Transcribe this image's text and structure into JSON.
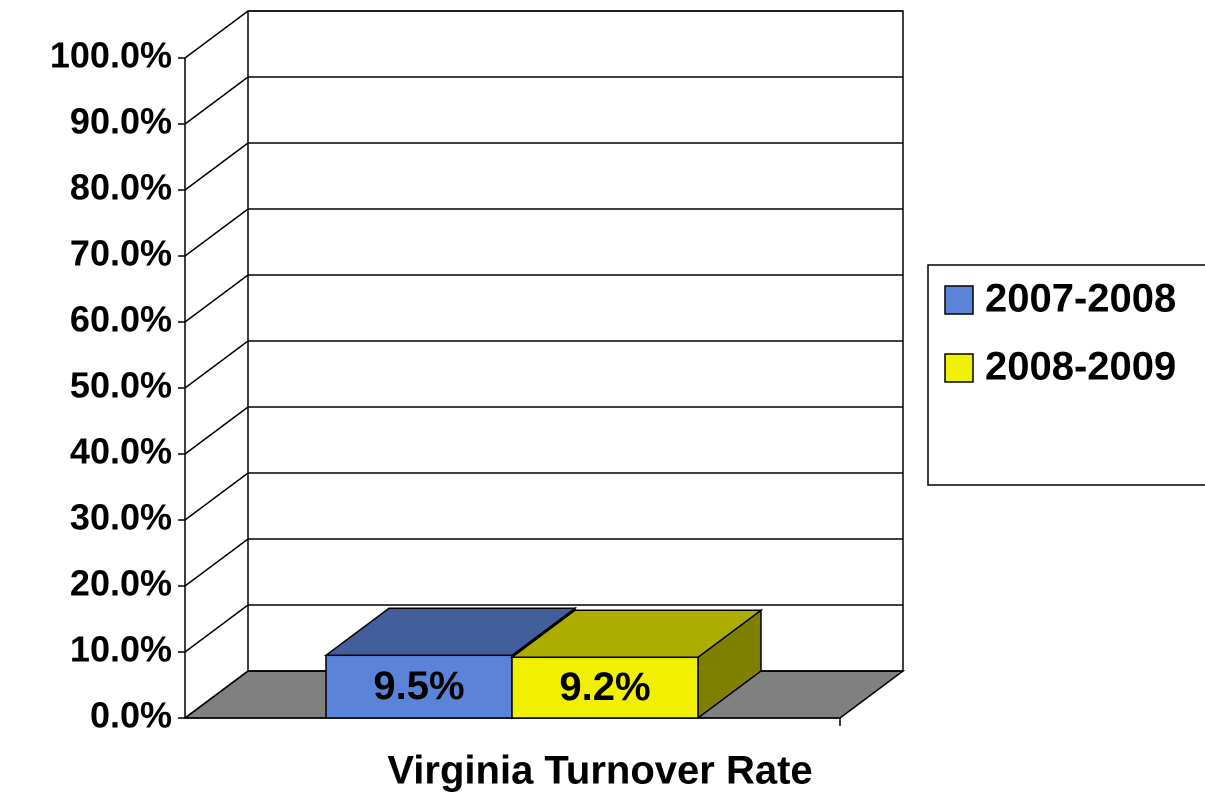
{
  "chart_data": {
    "type": "bar3d",
    "title": "Virginia Turnover Rate",
    "categories": [
      "Virginia Turnover Rate"
    ],
    "series": [
      {
        "name": "2007-2008",
        "color": "#5b84d8",
        "values": [
          9.5
        ],
        "value_labels": [
          "9.5%"
        ]
      },
      {
        "name": "2008-2009",
        "color": "#f0f000",
        "values": [
          9.2
        ],
        "value_labels": [
          "9.2%"
        ]
      }
    ],
    "ylim": [
      0,
      100
    ],
    "yticks": [
      {
        "value": 0,
        "label": "0.0%"
      },
      {
        "value": 10,
        "label": "10.0%"
      },
      {
        "value": 20,
        "label": "20.0%"
      },
      {
        "value": 30,
        "label": "30.0%"
      },
      {
        "value": 40,
        "label": "40.0%"
      },
      {
        "value": 50,
        "label": "50.0%"
      },
      {
        "value": 60,
        "label": "60.0%"
      },
      {
        "value": 70,
        "label": "70.0%"
      },
      {
        "value": 80,
        "label": "80.0%"
      },
      {
        "value": 90,
        "label": "90.0%"
      },
      {
        "value": 100,
        "label": "100.0%"
      }
    ],
    "grid": true,
    "legend": "right"
  }
}
